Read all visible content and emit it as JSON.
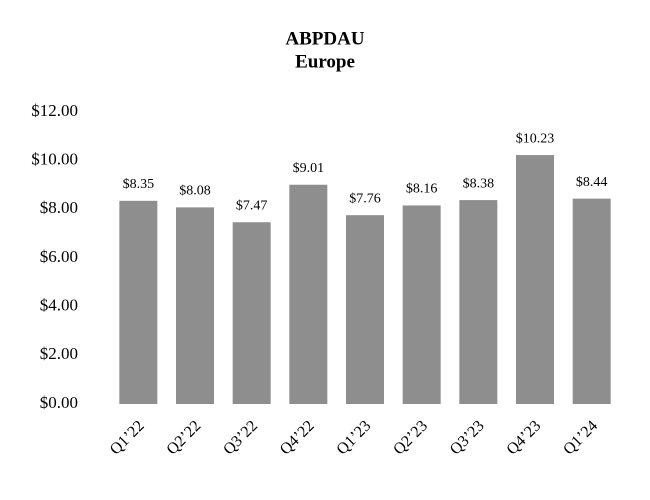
{
  "chart_data": {
    "type": "bar",
    "title": "ABPDAU",
    "subtitle": "Europe",
    "categories": [
      "Q1’22",
      "Q2’22",
      "Q3’22",
      "Q4’22",
      "Q1’23",
      "Q2’23",
      "Q3’23",
      "Q4’23",
      "Q1’24"
    ],
    "values": [
      8.35,
      8.08,
      7.47,
      9.01,
      7.76,
      8.16,
      8.38,
      10.23,
      8.44
    ],
    "value_labels": [
      "$8.35",
      "$8.08",
      "$7.47",
      "$9.01",
      "$7.76",
      "$8.16",
      "$8.38",
      "$10.23",
      "$8.44"
    ],
    "color": "#8e8e8e",
    "ylim": [
      0,
      12
    ],
    "yticks": [
      {
        "value": 0,
        "label": "$0.00"
      },
      {
        "value": 2,
        "label": "$2.00"
      },
      {
        "value": 4,
        "label": "$4.00"
      },
      {
        "value": 6,
        "label": "$6.00"
      },
      {
        "value": 8,
        "label": "$8.00"
      },
      {
        "value": 10,
        "label": "$10.00"
      },
      {
        "value": 12,
        "label": "$12.00"
      }
    ],
    "grid": false
  }
}
